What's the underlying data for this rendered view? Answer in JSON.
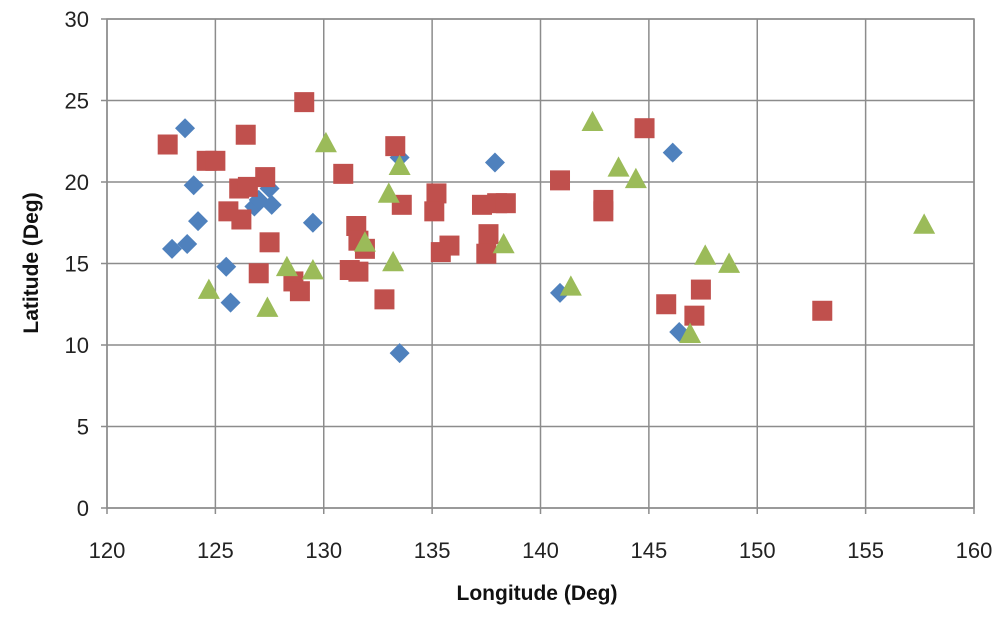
{
  "chart_data": {
    "type": "scatter",
    "title": "",
    "xlabel": "Longitude (Deg)",
    "ylabel": "Latitude (Deg)",
    "xlim": [
      120,
      160
    ],
    "ylim": [
      0,
      30
    ],
    "xticks": [
      "120",
      "125",
      "130",
      "135",
      "140",
      "145",
      "150",
      "155",
      "160"
    ],
    "yticks": [
      "0",
      "5",
      "10",
      "15",
      "20",
      "25",
      "30"
    ],
    "grid": true,
    "legend": "none",
    "series": [
      {
        "name": "blue diamonds",
        "marker": "diamond",
        "color": "#4f81bd",
        "points": [
          [
            123.6,
            23.3
          ],
          [
            124.0,
            19.8
          ],
          [
            124.2,
            17.6
          ],
          [
            123.0,
            15.9
          ],
          [
            123.7,
            16.2
          ],
          [
            125.5,
            14.8
          ],
          [
            125.7,
            12.6
          ],
          [
            126.8,
            18.5
          ],
          [
            127.0,
            18.9
          ],
          [
            127.6,
            18.6
          ],
          [
            127.5,
            19.6
          ],
          [
            129.5,
            17.5
          ],
          [
            133.5,
            21.5
          ],
          [
            133.5,
            9.5
          ],
          [
            137.9,
            21.2
          ],
          [
            140.9,
            13.2
          ],
          [
            146.1,
            21.8
          ],
          [
            146.4,
            10.8
          ]
        ]
      },
      {
        "name": "red squares",
        "marker": "square",
        "color": "#c0504d",
        "points": [
          [
            122.8,
            22.3
          ],
          [
            124.6,
            21.3
          ],
          [
            125.0,
            21.3
          ],
          [
            126.4,
            22.9
          ],
          [
            126.1,
            19.6
          ],
          [
            126.5,
            19.7
          ],
          [
            127.3,
            20.3
          ],
          [
            125.6,
            18.2
          ],
          [
            126.2,
            17.7
          ],
          [
            127.5,
            16.3
          ],
          [
            127.0,
            14.4
          ],
          [
            128.6,
            13.9
          ],
          [
            128.9,
            13.3
          ],
          [
            129.1,
            24.9
          ],
          [
            130.9,
            20.5
          ],
          [
            131.5,
            17.3
          ],
          [
            131.6,
            16.4
          ],
          [
            131.9,
            15.9
          ],
          [
            131.2,
            14.6
          ],
          [
            131.6,
            14.5
          ],
          [
            132.8,
            12.8
          ],
          [
            133.3,
            22.2
          ],
          [
            133.6,
            18.6
          ],
          [
            135.2,
            19.3
          ],
          [
            135.1,
            18.2
          ],
          [
            135.4,
            15.7
          ],
          [
            135.8,
            16.1
          ],
          [
            137.3,
            18.6
          ],
          [
            137.6,
            16.8
          ],
          [
            137.5,
            15.6
          ],
          [
            138.0,
            18.7
          ],
          [
            138.4,
            18.7
          ],
          [
            140.9,
            20.1
          ],
          [
            142.9,
            18.9
          ],
          [
            142.9,
            18.2
          ],
          [
            144.8,
            23.3
          ],
          [
            145.8,
            12.5
          ],
          [
            147.1,
            11.8
          ],
          [
            147.4,
            13.4
          ],
          [
            153.0,
            12.1
          ]
        ]
      },
      {
        "name": "green triangles",
        "marker": "triangle",
        "color": "#9bbb59",
        "points": [
          [
            124.7,
            13.4
          ],
          [
            127.4,
            12.3
          ],
          [
            128.3,
            14.8
          ],
          [
            129.5,
            14.6
          ],
          [
            130.1,
            22.4
          ],
          [
            131.9,
            16.3
          ],
          [
            133.0,
            19.3
          ],
          [
            133.5,
            21.0
          ],
          [
            133.2,
            15.1
          ],
          [
            138.3,
            16.2
          ],
          [
            141.4,
            13.6
          ],
          [
            142.4,
            23.7
          ],
          [
            143.6,
            20.9
          ],
          [
            144.4,
            20.2
          ],
          [
            147.6,
            15.5
          ],
          [
            148.7,
            15.0
          ],
          [
            146.9,
            10.7
          ],
          [
            157.7,
            17.4
          ]
        ]
      }
    ]
  }
}
